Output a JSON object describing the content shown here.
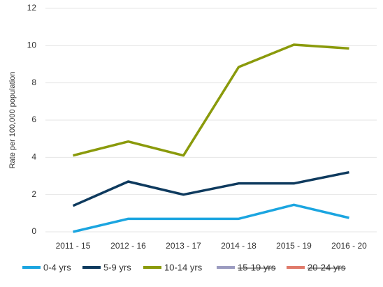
{
  "chart_data": {
    "type": "line",
    "y_label": "Rate per 100,000 population",
    "categories": [
      "2011 - 15",
      "2012 - 16",
      "2013 - 17",
      "2014 - 18",
      "2015 - 19",
      "2016 - 20"
    ],
    "series": [
      {
        "name": "0-4 yrs",
        "color": "#1ba5e0",
        "values": [
          0,
          0.7,
          0.7,
          0.7,
          1.45,
          0.75
        ]
      },
      {
        "name": "5-9 yrs",
        "color": "#0e3a5e",
        "values": [
          1.4,
          2.7,
          2.0,
          2.6,
          2.6,
          3.2
        ]
      },
      {
        "name": "10-14 yrs",
        "color": "#8a9a0b",
        "values": [
          4.1,
          4.85,
          4.1,
          8.85,
          10.05,
          9.85
        ]
      },
      {
        "name": "15-19 yrs",
        "color": "#9b9bc0",
        "hidden": true,
        "values": [
          null,
          null,
          null,
          null,
          null,
          null
        ]
      },
      {
        "name": "20-24 yrs",
        "color": "#e07a6a",
        "hidden": true,
        "values": [
          null,
          null,
          null,
          null,
          null,
          null
        ]
      }
    ],
    "ylim": [
      0,
      12
    ],
    "yticks": [
      0,
      2,
      4,
      6,
      8,
      10,
      12
    ],
    "grid": true,
    "legend": "bottom"
  }
}
